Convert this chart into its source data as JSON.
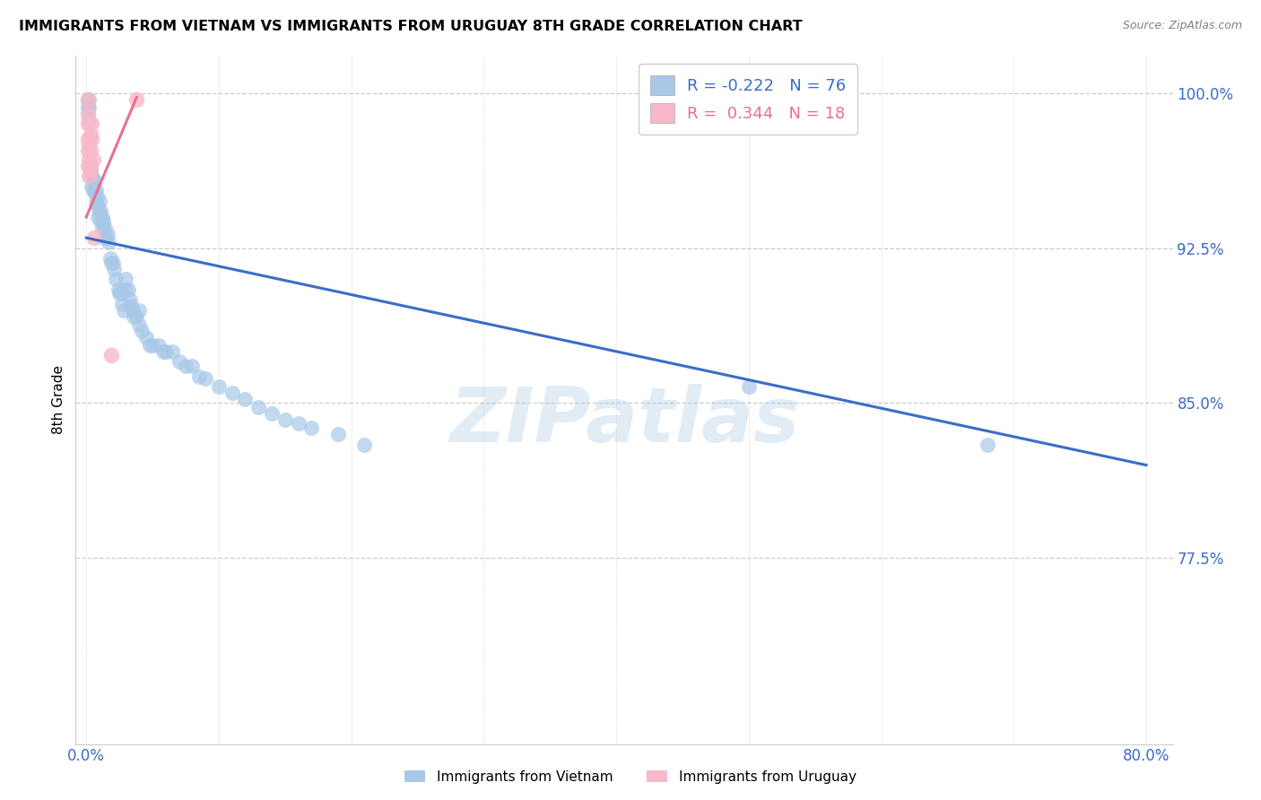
{
  "title": "IMMIGRANTS FROM VIETNAM VS IMMIGRANTS FROM URUGUAY 8TH GRADE CORRELATION CHART",
  "source": "Source: ZipAtlas.com",
  "ylabel": "8th Grade",
  "xlim": [
    -0.008,
    0.82
  ],
  "ylim": [
    0.685,
    1.018
  ],
  "xtick_positions": [
    0.0,
    0.1,
    0.2,
    0.3,
    0.4,
    0.5,
    0.6,
    0.7,
    0.8
  ],
  "xticklabels": [
    "0.0%",
    "",
    "",
    "",
    "",
    "",
    "",
    "",
    "80.0%"
  ],
  "ytick_positions": [
    0.775,
    0.85,
    0.925,
    1.0
  ],
  "yticklabels": [
    "77.5%",
    "85.0%",
    "92.5%",
    "100.0%"
  ],
  "blue_dot_color": "#A8C8E8",
  "pink_dot_color": "#F8B8C8",
  "blue_line_color": "#3B6CC8",
  "pink_line_color": "#E87090",
  "grid_color": "#CCCCCC",
  "watermark_text": "ZIPatlas",
  "watermark_color": "#B8D0E8",
  "legend_r_blue": "-0.222",
  "legend_n_blue": "76",
  "legend_r_pink": "0.344",
  "legend_n_pink": "18",
  "label_blue": "Immigrants from Vietnam",
  "label_pink": "Immigrants from Uruguay",
  "blue_line_x0": 0.0,
  "blue_line_x1": 0.8,
  "blue_line_y0": 0.93,
  "blue_line_y1": 0.82,
  "pink_line_x0": 0.0,
  "pink_line_x1": 0.038,
  "pink_line_y0": 0.94,
  "pink_line_y1": 0.998,
  "blue_x": [
    0.001,
    0.001,
    0.001,
    0.002,
    0.002,
    0.002,
    0.003,
    0.003,
    0.004,
    0.004,
    0.005,
    0.005,
    0.006,
    0.006,
    0.007,
    0.007,
    0.008,
    0.009,
    0.009,
    0.01,
    0.01,
    0.011,
    0.011,
    0.012,
    0.012,
    0.013,
    0.014,
    0.014,
    0.015,
    0.016,
    0.017,
    0.018,
    0.019,
    0.02,
    0.021,
    0.022,
    0.024,
    0.025,
    0.026,
    0.027,
    0.028,
    0.03,
    0.03,
    0.032,
    0.033,
    0.034,
    0.035,
    0.036,
    0.038,
    0.04,
    0.04,
    0.042,
    0.045,
    0.048,
    0.05,
    0.055,
    0.058,
    0.06,
    0.065,
    0.07,
    0.075,
    0.08,
    0.085,
    0.09,
    0.1,
    0.11,
    0.12,
    0.13,
    0.14,
    0.15,
    0.16,
    0.17,
    0.19,
    0.21,
    0.68,
    0.5
  ],
  "blue_y": [
    0.997,
    0.993,
    0.99,
    0.997,
    0.993,
    0.987,
    0.965,
    0.962,
    0.96,
    0.955,
    0.958,
    0.953,
    0.958,
    0.952,
    0.953,
    0.947,
    0.95,
    0.945,
    0.94,
    0.948,
    0.942,
    0.943,
    0.938,
    0.94,
    0.935,
    0.938,
    0.935,
    0.93,
    0.93,
    0.932,
    0.928,
    0.92,
    0.918,
    0.918,
    0.915,
    0.91,
    0.905,
    0.903,
    0.903,
    0.898,
    0.895,
    0.91,
    0.905,
    0.905,
    0.9,
    0.897,
    0.895,
    0.892,
    0.892,
    0.895,
    0.888,
    0.885,
    0.882,
    0.878,
    0.878,
    0.878,
    0.875,
    0.875,
    0.875,
    0.87,
    0.868,
    0.868,
    0.863,
    0.862,
    0.858,
    0.855,
    0.852,
    0.848,
    0.845,
    0.842,
    0.84,
    0.838,
    0.835,
    0.83,
    0.83,
    0.858
  ],
  "pink_x": [
    0.001,
    0.001,
    0.001,
    0.001,
    0.001,
    0.001,
    0.002,
    0.002,
    0.002,
    0.003,
    0.003,
    0.003,
    0.004,
    0.004,
    0.005,
    0.006,
    0.019,
    0.038
  ],
  "pink_y": [
    0.997,
    0.99,
    0.985,
    0.978,
    0.972,
    0.965,
    0.975,
    0.968,
    0.96,
    0.98,
    0.972,
    0.963,
    0.985,
    0.978,
    0.968,
    0.93,
    0.873,
    0.997
  ]
}
